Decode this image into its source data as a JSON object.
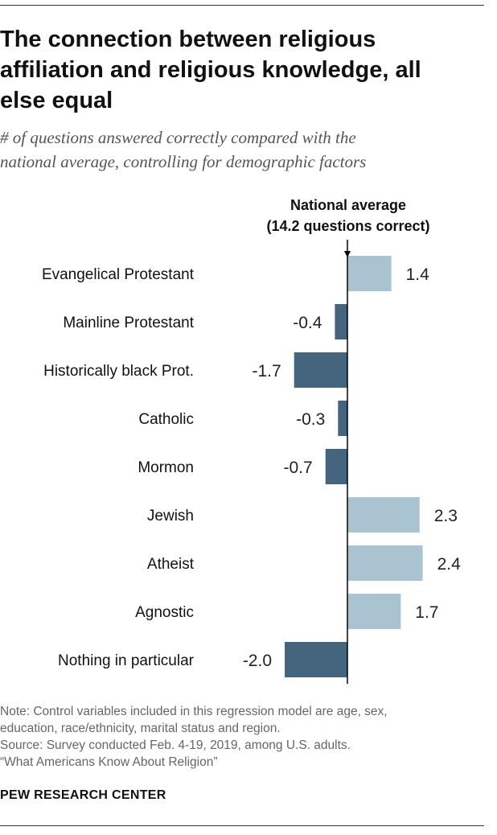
{
  "title_lines": [
    "The connection between religious",
    "affiliation and religious knowledge, all",
    "else equal"
  ],
  "subtitle_lines": [
    "# of questions answered correctly compared with the",
    "national average, controlling for demographic factors"
  ],
  "reference_label": {
    "line1": "National average",
    "line2": "(14.2 questions correct)"
  },
  "chart_data": {
    "type": "bar",
    "orientation": "horizontal",
    "title": "The connection between religious affiliation and religious knowledge, all else equal",
    "categories": [
      "Evangelical Protestant",
      "Mainline Protestant",
      "Historically black Prot.",
      "Catholic",
      "Mormon",
      "Jewish",
      "Atheist",
      "Agnostic",
      "Nothing in particular"
    ],
    "values": [
      1.4,
      -0.4,
      -1.7,
      -0.3,
      -0.7,
      2.3,
      2.4,
      1.7,
      -2.0
    ],
    "value_labels": [
      "1.4",
      "-0.4",
      "-1.7",
      "-0.3",
      "-0.7",
      "2.3",
      "2.4",
      "1.7",
      "-2.0"
    ],
    "baseline": 0,
    "xlim": [
      -2.0,
      2.4
    ],
    "colors": {
      "positive": "#a9c3d1",
      "negative": "#45647e"
    },
    "grid": false,
    "legend": "none"
  },
  "notes": [
    "Note: Control variables included in this regression model are age, sex,",
    "education, race/ethnicity, marital status and region.",
    "Source: Survey conducted Feb. 4-19, 2019, among U.S. adults.",
    "“What Americans Know About Religion”"
  ],
  "brand": "PEW RESEARCH CENTER"
}
